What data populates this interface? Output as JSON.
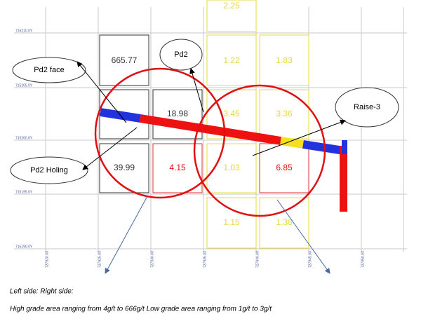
{
  "grid_labels_y": [
    "715210.0Y",
    "715205.0Y",
    "715200.0Y",
    "715195.0Y",
    "715190.0Y"
  ],
  "grid_labels_x": [
    "727920.0X",
    "727925.0X",
    "727930.0X",
    "727935.0X",
    "727940.0X",
    "727945.0X",
    "727950.0X"
  ],
  "cells": [
    "2.25",
    "665.77",
    "1.22",
    "1.83",
    "18.98",
    "3.45",
    "3.36",
    "39.99",
    "4.15",
    "1.03",
    "6.85",
    "1.15",
    "1.38"
  ],
  "callouts": [
    "Pd2 face",
    "Pd2",
    "Raise-3",
    "Pd2 Holing"
  ],
  "caption": {
    "line1": "Left side:    Right side:",
    "line2": "High grade area ranging from 4g/t to 666g/t   Low grade area ranging from 1g/t to 3g/t"
  }
}
